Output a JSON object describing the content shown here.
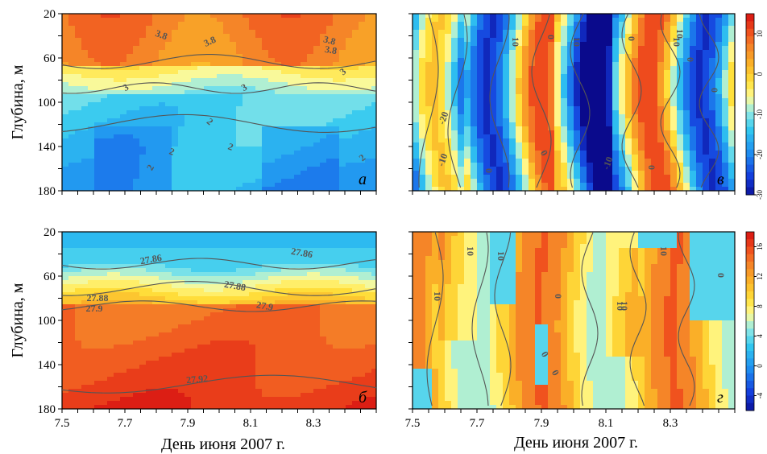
{
  "chart_data": [
    {
      "type": "heatmap",
      "panel_label": "а",
      "title": "",
      "xlabel": "",
      "ylabel": "Глубина, м",
      "xlim": [
        7.5,
        8.5
      ],
      "ylim": [
        180,
        20
      ],
      "x_ticks": [
        "7.5",
        "7.7",
        "7.9",
        "8.1",
        "8.3"
      ],
      "y_ticks": [
        "20",
        "60",
        "100",
        "140",
        "180"
      ],
      "contour_labels": [
        "3.8",
        "3.8",
        "3.8",
        "3.8",
        "3",
        "3",
        "3",
        "2",
        "2",
        "2",
        "2",
        "2"
      ],
      "contour_levels": [
        2,
        3,
        3.8
      ],
      "colormap": "blue-cyan-yellow-orange-red"
    },
    {
      "type": "heatmap",
      "panel_label": "в",
      "title": "",
      "xlabel": "",
      "ylabel": "",
      "xlim": [
        7.5,
        8.5
      ],
      "ylim": [
        180,
        20
      ],
      "contour_labels": [
        "10",
        "0",
        "10",
        "0",
        "10",
        "10",
        "0",
        "0",
        "-20",
        "-10",
        "0",
        "0",
        "-10",
        "0"
      ],
      "colorbar_ticks": [
        "10",
        "0",
        "-10",
        "-20",
        "-30"
      ],
      "colorbar_range": [
        -30,
        15
      ],
      "colormap": "blue-cyan-yellow-orange-red"
    },
    {
      "type": "heatmap",
      "panel_label": "б",
      "title": "",
      "xlabel": "День июня 2007 г.",
      "ylabel": "Глубина, м",
      "xlim": [
        7.5,
        8.5
      ],
      "ylim": [
        180,
        20
      ],
      "x_ticks": [
        "7.5",
        "7.7",
        "7.9",
        "8.1",
        "8.3"
      ],
      "y_ticks": [
        "20",
        "60",
        "100",
        "140",
        "180"
      ],
      "contour_labels": [
        "27.86",
        "27.86",
        "27.88",
        "27.88",
        "27.9",
        "27.9",
        "27.92"
      ],
      "contour_levels": [
        27.86,
        27.88,
        27.9,
        27.92
      ],
      "colormap": "blue-cyan-yellow-orange-red"
    },
    {
      "type": "heatmap",
      "panel_label": "г",
      "title": "",
      "xlabel": "День июня 2007 г.",
      "ylabel": "",
      "xlim": [
        7.5,
        8.5
      ],
      "ylim": [
        180,
        20
      ],
      "x_ticks": [
        "7.5",
        "7.7",
        "7.9",
        "8.1",
        "8.3"
      ],
      "contour_labels": [
        "10",
        "10",
        "10",
        "10",
        "10",
        "0",
        "0",
        "0",
        "10",
        "0"
      ],
      "colorbar_ticks": [
        "16",
        "12",
        "8",
        "4",
        "0",
        "-4"
      ],
      "colorbar_range": [
        -6,
        18
      ],
      "colormap": "blue-cyan-yellow-orange-red"
    }
  ]
}
